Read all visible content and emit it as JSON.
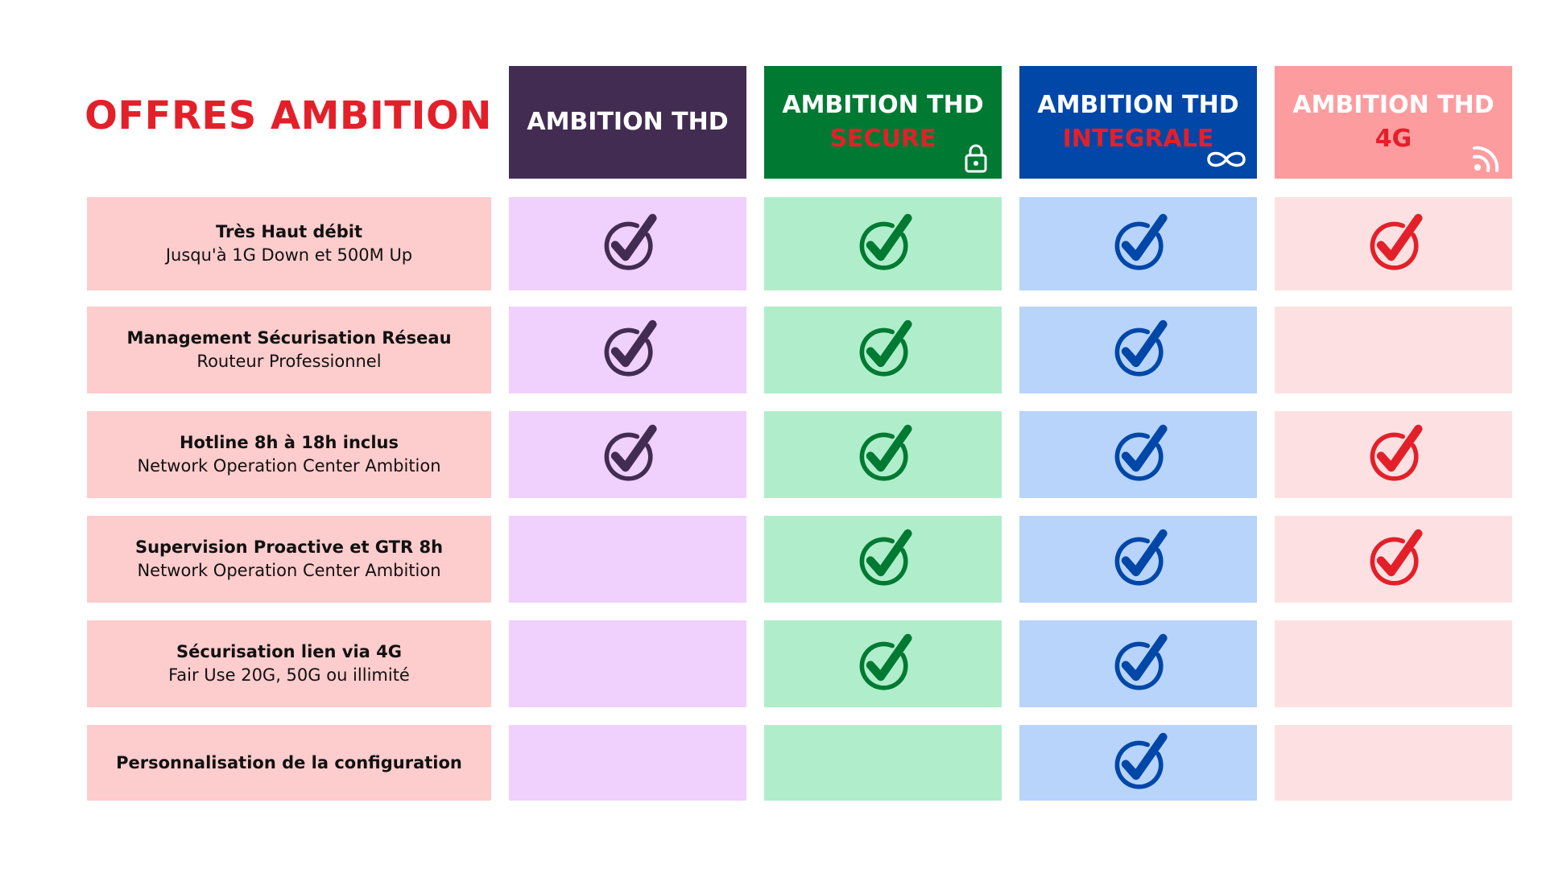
{
  "title": "OFFRES AMBITION",
  "plans": [
    {
      "name": "AMBITION THD",
      "subtitle": "",
      "icon": "",
      "header_color": "#432c52",
      "cell_color": "#f0d0fc",
      "check_color": "#432c52",
      "features": [
        true,
        true,
        true,
        false,
        false,
        false
      ]
    },
    {
      "name": "AMBITION THD",
      "subtitle": "SECURE",
      "icon": "lock-icon",
      "header_color": "#007a33",
      "cell_color": "#b0eecb",
      "check_color": "#007a33",
      "features": [
        true,
        true,
        true,
        true,
        true,
        false
      ]
    },
    {
      "name": "AMBITION THD",
      "subtitle": "INTEGRALE",
      "icon": "infinity-icon",
      "header_color": "#0047a8",
      "cell_color": "#b8d4fb",
      "check_color": "#0047a8",
      "features": [
        true,
        true,
        true,
        true,
        true,
        true
      ]
    },
    {
      "name": "AMBITION THD",
      "subtitle": "4G",
      "icon": "signal-icon",
      "header_color": "#fd9c9f",
      "cell_color": "#fde1e2",
      "check_color": "#e3202a",
      "features": [
        true,
        false,
        true,
        true,
        false,
        false
      ]
    }
  ],
  "rows": [
    {
      "main": "Très Haut débit",
      "sub": "Jusqu'à 1G Down et 500M Up"
    },
    {
      "main": "Management Sécurisation Réseau",
      "sub": "Routeur Professionnel"
    },
    {
      "main": "Hotline 8h à 18h inclus",
      "sub": "Network Operation Center Ambition"
    },
    {
      "main": "Supervision Proactive et GTR 8h",
      "sub": "Network Operation Center Ambition"
    },
    {
      "main": "Sécurisation lien via 4G",
      "sub": "Fair Use 20G, 50G ou illimité"
    },
    {
      "main": "Personnalisation de la configuration",
      "sub": ""
    }
  ]
}
